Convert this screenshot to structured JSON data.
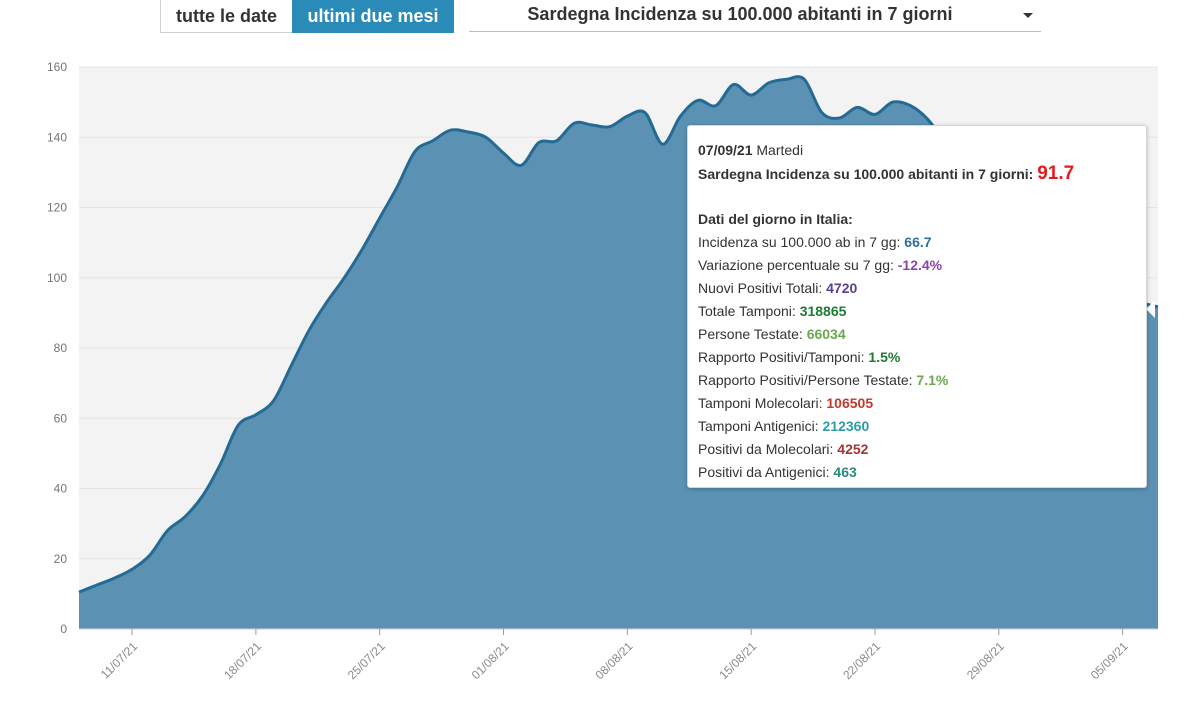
{
  "controls": {
    "all_dates_label": "tutte le date",
    "two_months_label": "ultimi due mesi",
    "metric_select": "Sardegna Incidenza su 100.000 abitanti in 7 giorni"
  },
  "colors": {
    "area_fill": "#5b92b4",
    "area_line": "#236a94",
    "plot_bg": "#f3f3f3",
    "accent": "#2a8bb8"
  },
  "chart_data": {
    "type": "area",
    "ylim": [
      0,
      160
    ],
    "yticks": [
      0,
      20,
      40,
      60,
      80,
      100,
      120,
      140,
      160
    ],
    "grid": true,
    "x_start_date": "2021-07-08",
    "x_end_date": "2021-09-07",
    "xtick_labels": [
      "11/07/21",
      "18/07/21",
      "25/07/21",
      "01/08/21",
      "08/08/21",
      "15/08/21",
      "22/08/21",
      "29/08/21",
      "05/09/21"
    ],
    "xtick_dates": [
      "2021-07-11",
      "2021-07-18",
      "2021-07-25",
      "2021-08-01",
      "2021-08-08",
      "2021-08-15",
      "2021-08-22",
      "2021-08-29",
      "2021-09-05"
    ],
    "series": [
      {
        "dates": [
          "2021-07-08",
          "2021-07-09",
          "2021-07-10",
          "2021-07-11",
          "2021-07-12",
          "2021-07-13",
          "2021-07-14",
          "2021-07-15",
          "2021-07-16",
          "2021-07-17",
          "2021-07-18",
          "2021-07-19",
          "2021-07-20",
          "2021-07-21",
          "2021-07-22",
          "2021-07-23",
          "2021-07-24",
          "2021-07-25",
          "2021-07-26",
          "2021-07-27",
          "2021-07-28",
          "2021-07-29",
          "2021-07-30",
          "2021-07-31",
          "2021-08-01",
          "2021-08-02",
          "2021-08-03",
          "2021-08-04",
          "2021-08-05",
          "2021-08-06",
          "2021-08-07",
          "2021-08-08",
          "2021-08-09",
          "2021-08-10",
          "2021-08-11",
          "2021-08-12",
          "2021-08-13",
          "2021-08-14",
          "2021-08-15",
          "2021-08-16",
          "2021-08-17",
          "2021-08-18",
          "2021-08-19",
          "2021-08-20",
          "2021-08-21",
          "2021-08-22",
          "2021-08-23",
          "2021-08-24",
          "2021-08-25",
          "2021-08-26",
          "2021-08-27",
          "2021-08-28",
          "2021-08-29",
          "2021-08-30",
          "2021-08-31",
          "2021-09-01",
          "2021-09-02",
          "2021-09-03",
          "2021-09-04",
          "2021-09-05",
          "2021-09-06",
          "2021-09-07"
        ],
        "values": [
          10.5,
          12.5,
          14.5,
          17,
          21,
          28,
          32,
          38,
          47,
          58,
          61,
          65,
          75,
          85,
          93,
          100,
          108,
          117,
          126,
          136,
          139,
          142,
          141.5,
          140,
          135.5,
          132,
          138.5,
          139,
          144,
          143.5,
          143,
          146,
          147,
          138,
          146,
          150.5,
          149,
          155,
          152,
          155.5,
          156.5,
          156.5,
          147,
          145.5,
          148.5,
          146.5,
          150,
          149,
          145,
          138,
          132,
          126,
          120,
          114,
          110,
          106,
          102,
          99,
          97,
          95,
          93,
          91.7
        ]
      }
    ]
  },
  "tooltip": {
    "date": "07/09/21",
    "weekday": "Martedi",
    "headline_label": "Sardegna Incidenza su 100.000 abitanti in 7 giorni:",
    "headline_value": "91.7",
    "section_title": "Dati del giorno in Italia:",
    "rows": [
      {
        "label": "Incidenza su 100.000 ab in 7 gg:",
        "value": "66.7",
        "color": "#2c6f9e"
      },
      {
        "label": "Variazione percentuale su 7 gg:",
        "value": "-12.4%",
        "color": "#8e44ad"
      },
      {
        "label": "Nuovi Positivi Totali:",
        "value": "4720",
        "color": "#5b3f8c"
      },
      {
        "label": "Totale Tamponi:",
        "value": "318865",
        "color": "#1e7b34"
      },
      {
        "label": "Persone Testate:",
        "value": "66034",
        "color": "#6aa84f"
      },
      {
        "label": "Rapporto Positivi/Tamponi:",
        "value": "1.5%",
        "color": "#1e7b34"
      },
      {
        "label": "Rapporto Positivi/Persone Testate:",
        "value": "7.1%",
        "color": "#6aa84f"
      },
      {
        "label": "Tamponi Molecolari:",
        "value": "106505",
        "color": "#c0392b"
      },
      {
        "label": "Tamponi Antigenici:",
        "value": "212360",
        "color": "#2e9ca6"
      },
      {
        "label": "Positivi da Molecolari:",
        "value": "4252",
        "color": "#a83232"
      },
      {
        "label": "Positivi da Antigenici:",
        "value": "463",
        "color": "#2b8a7e"
      }
    ]
  }
}
